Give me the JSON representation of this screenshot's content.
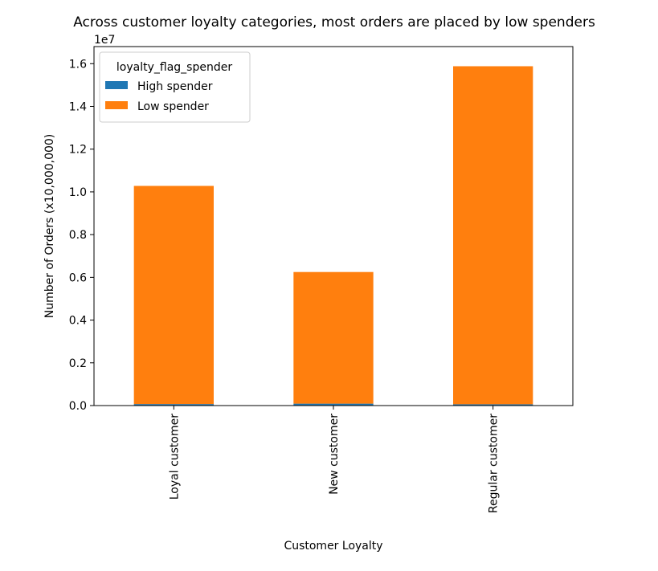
{
  "chart_data": {
    "type": "bar",
    "stacked": true,
    "title": "Across customer loyalty categories, most orders are placed by low spenders",
    "xlabel": "Customer Loyalty",
    "ylabel": "Number of Orders (x10,000,000)",
    "y_offset_label": "1e7",
    "ylim": [
      0,
      16800000
    ],
    "yticks": [
      0,
      2000000,
      4000000,
      6000000,
      8000000,
      10000000,
      12000000,
      14000000,
      16000000
    ],
    "ytick_labels": [
      "0.0",
      "0.2",
      "0.4",
      "0.6",
      "0.8",
      "1.0",
      "1.2",
      "1.4",
      "1.6"
    ],
    "categories": [
      "Loyal customer",
      "New customer",
      "Regular customer"
    ],
    "legend": {
      "title": "loyalty_flag_spender",
      "placement": "top-left"
    },
    "grid": false,
    "series": [
      {
        "name": "High spender",
        "color": "#1f77b4",
        "values": [
          70000,
          90000,
          60000
        ]
      },
      {
        "name": "Low spender",
        "color": "#ff7f0e",
        "values": [
          10210000,
          6160000,
          15820000
        ]
      }
    ]
  }
}
